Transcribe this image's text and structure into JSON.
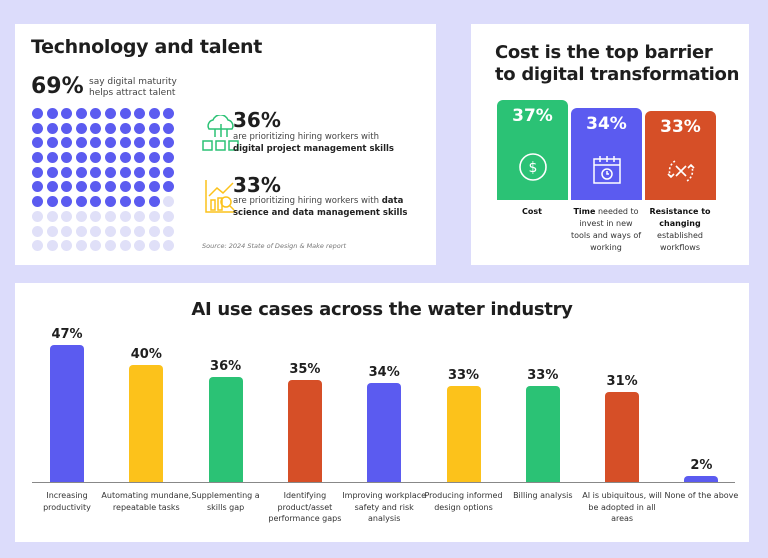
{
  "panel1": {
    "title": "Technology and talent",
    "headline_pct": "69%",
    "headline_text_1": "say digital maturity",
    "headline_text_2": "helps attract talent",
    "dot_grid_filled": 69,
    "dot_grid_total": 100,
    "stat1": {
      "pct": "36%",
      "text": "are prioritizing hiring workers with",
      "bold": "digital project management skills",
      "icon": "cloud-network-icon"
    },
    "stat2": {
      "pct": "33%",
      "text": "are prioritizing hiring workers with",
      "bold_1": "data",
      "bold_2": "science and data management skills",
      "icon": "data-analytics-icon"
    },
    "source": "Source: 2024 State of Design & Make report"
  },
  "panel2": {
    "title_1": "Cost is the top barrier",
    "title_2": "to digital transformation",
    "bars": [
      {
        "pct": "37%",
        "value": 37,
        "color": "#2bc275",
        "icon": "dollar-icon",
        "bold": "Cost",
        "rest": ""
      },
      {
        "pct": "34%",
        "value": 34,
        "color": "#5b5bf0",
        "icon": "calendar-clock-icon",
        "bold": "Time",
        "rest": " needed to invest in new tools and ways of working"
      },
      {
        "pct": "33%",
        "value": 33,
        "color": "#d64f27",
        "icon": "cycle-cancel-icon",
        "bold": "Resistance to changing",
        "rest": " established workflows"
      }
    ]
  },
  "chart_data": {
    "type": "bar",
    "title": "AI use cases across the water industry",
    "categories": [
      "Increasing productivity",
      "Automating mundane, repeatable tasks",
      "Supplementing a skills gap",
      "Identifying product/asset performance gaps",
      "Improving workplace safety and risk analysis",
      "Producing informed design options",
      "Billing analysis",
      "AI is ubiquitous, will be adopted in all areas",
      "None of the above"
    ],
    "values": [
      47,
      40,
      36,
      35,
      34,
      33,
      33,
      31,
      2
    ],
    "data_labels": [
      "47%",
      "40%",
      "36%",
      "35%",
      "34%",
      "33%",
      "33%",
      "31%",
      "2%"
    ],
    "colors": [
      "#5b5bf0",
      "#fcc21b",
      "#2bc275",
      "#d64f27",
      "#5b5bf0",
      "#fcc21b",
      "#2bc275",
      "#d64f27",
      "#5b5bf0"
    ],
    "ylim": [
      0,
      47
    ],
    "grid": false
  }
}
